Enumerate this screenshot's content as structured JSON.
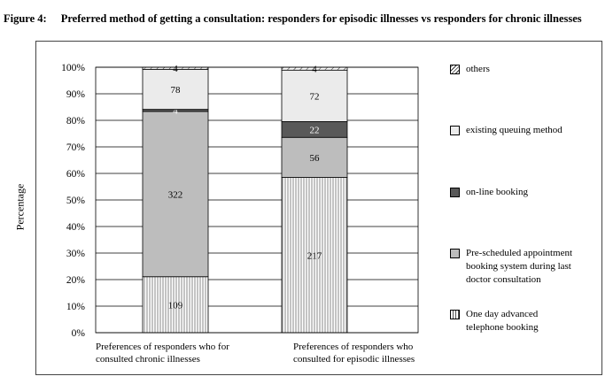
{
  "figure": {
    "number": "Figure 4:",
    "title": "Preferred method of getting a consultation: responders for episodic illnesses vs responders for chronic illnesses"
  },
  "colors": {
    "one_day": "#ffffff",
    "pre_scheduled": "#bdbdbd",
    "online": "#595959",
    "existing": "#ebebeb",
    "others": "#ffffff",
    "hatch": "#555555"
  },
  "chart_data": {
    "type": "bar",
    "stacked": true,
    "normalized": "percent",
    "ylabel": "Percentage",
    "xlabel": "",
    "ylim": [
      0,
      100
    ],
    "y_ticks": [
      "0%",
      "10%",
      "20%",
      "30%",
      "40%",
      "50%",
      "60%",
      "70%",
      "80%",
      "90%",
      "100%"
    ],
    "grid": true,
    "legend_position": "right",
    "categories": [
      "Preferences of responders who for\nconsulted chronic illnesses",
      "Preferences of responders who\nconsulted for episodic illnesses"
    ],
    "series": [
      {
        "name": "One day advanced\ntelephone booking",
        "values": [
          109,
          217
        ],
        "pattern": "vertical-lines"
      },
      {
        "name": "Pre-scheduled appointment\nbooking system during last\ndoctor consultation",
        "values": [
          322,
          56
        ],
        "pattern": "solid-gray"
      },
      {
        "name": "on-line booking",
        "values": [
          4,
          22
        ],
        "pattern": "solid-dark"
      },
      {
        "name": "existing queuing method",
        "values": [
          78,
          72
        ],
        "pattern": "solid-light"
      },
      {
        "name": "others",
        "values": [
          4,
          4
        ],
        "pattern": "diagonal-lines"
      }
    ],
    "legend_order": [
      "others",
      "existing queuing method",
      "on-line booking",
      "Pre-scheduled appointment\nbooking system during last\ndoctor consultation",
      "One day advanced\ntelephone booking"
    ]
  }
}
